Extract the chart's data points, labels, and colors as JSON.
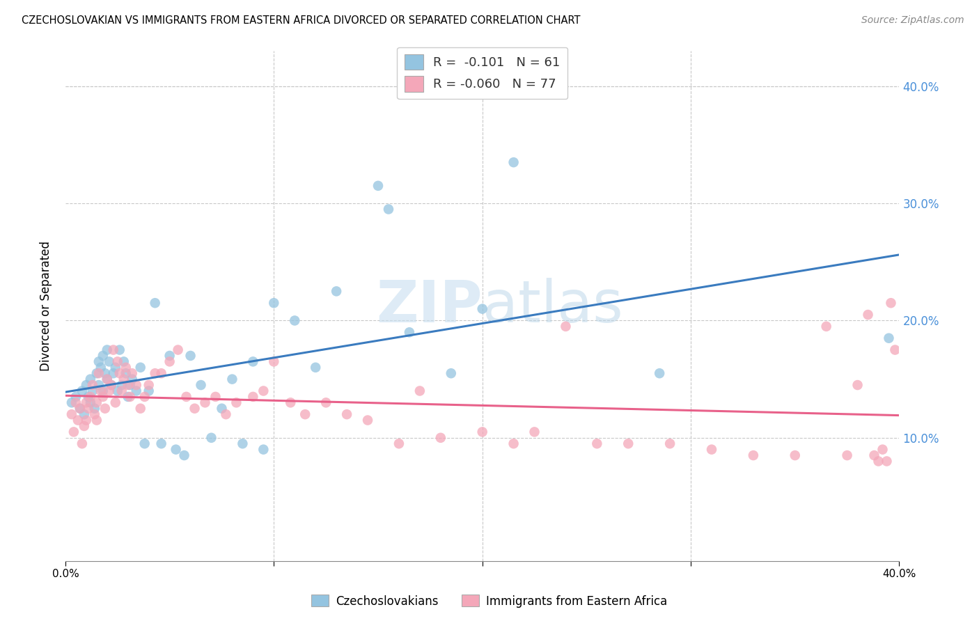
{
  "title": "CZECHOSLOVAKIAN VS IMMIGRANTS FROM EASTERN AFRICA DIVORCED OR SEPARATED CORRELATION CHART",
  "source": "Source: ZipAtlas.com",
  "ylabel": "Divorced or Separated",
  "xlim": [
    0.0,
    0.4
  ],
  "ylim": [
    -0.005,
    0.43
  ],
  "yticks": [
    0.1,
    0.2,
    0.3,
    0.4
  ],
  "ytick_labels": [
    "10.0%",
    "20.0%",
    "30.0%",
    "40.0%"
  ],
  "xticks": [
    0.0,
    0.1,
    0.2,
    0.3,
    0.4
  ],
  "legend_R1": "-0.101",
  "legend_N1": "61",
  "legend_R2": "-0.060",
  "legend_N2": "77",
  "color_blue": "#94c4e0",
  "color_pink": "#f4a7b9",
  "line_color_blue": "#3a7bbf",
  "line_color_pink": "#e8618a",
  "watermark_color": "#c8dff0",
  "label1": "Czechoslovakians",
  "label2": "Immigrants from Eastern Africa",
  "blue_x": [
    0.003,
    0.005,
    0.007,
    0.008,
    0.009,
    0.01,
    0.011,
    0.012,
    0.012,
    0.013,
    0.014,
    0.015,
    0.016,
    0.016,
    0.017,
    0.018,
    0.018,
    0.019,
    0.02,
    0.02,
    0.021,
    0.022,
    0.023,
    0.024,
    0.025,
    0.026,
    0.027,
    0.028,
    0.029,
    0.03,
    0.031,
    0.032,
    0.034,
    0.036,
    0.038,
    0.04,
    0.043,
    0.046,
    0.05,
    0.053,
    0.057,
    0.06,
    0.065,
    0.07,
    0.075,
    0.08,
    0.085,
    0.09,
    0.095,
    0.1,
    0.11,
    0.12,
    0.13,
    0.15,
    0.155,
    0.165,
    0.185,
    0.2,
    0.215,
    0.285,
    0.395
  ],
  "blue_y": [
    0.13,
    0.135,
    0.125,
    0.14,
    0.12,
    0.145,
    0.135,
    0.15,
    0.13,
    0.14,
    0.125,
    0.155,
    0.165,
    0.145,
    0.16,
    0.17,
    0.14,
    0.155,
    0.175,
    0.15,
    0.165,
    0.145,
    0.155,
    0.16,
    0.14,
    0.175,
    0.145,
    0.165,
    0.155,
    0.135,
    0.145,
    0.15,
    0.14,
    0.16,
    0.095,
    0.14,
    0.215,
    0.095,
    0.17,
    0.09,
    0.085,
    0.17,
    0.145,
    0.1,
    0.125,
    0.15,
    0.095,
    0.165,
    0.09,
    0.215,
    0.2,
    0.16,
    0.225,
    0.315,
    0.295,
    0.19,
    0.155,
    0.21,
    0.335,
    0.155,
    0.185
  ],
  "pink_x": [
    0.003,
    0.004,
    0.005,
    0.006,
    0.007,
    0.008,
    0.009,
    0.01,
    0.01,
    0.011,
    0.012,
    0.013,
    0.014,
    0.015,
    0.015,
    0.016,
    0.017,
    0.018,
    0.019,
    0.02,
    0.021,
    0.022,
    0.023,
    0.024,
    0.025,
    0.026,
    0.027,
    0.028,
    0.029,
    0.03,
    0.031,
    0.032,
    0.034,
    0.036,
    0.038,
    0.04,
    0.043,
    0.046,
    0.05,
    0.054,
    0.058,
    0.062,
    0.067,
    0.072,
    0.077,
    0.082,
    0.09,
    0.095,
    0.1,
    0.108,
    0.115,
    0.125,
    0.135,
    0.145,
    0.16,
    0.17,
    0.18,
    0.2,
    0.215,
    0.225,
    0.24,
    0.255,
    0.27,
    0.29,
    0.31,
    0.33,
    0.35,
    0.365,
    0.375,
    0.38,
    0.385,
    0.388,
    0.39,
    0.392,
    0.394,
    0.396,
    0.398
  ],
  "pink_y": [
    0.12,
    0.105,
    0.13,
    0.115,
    0.125,
    0.095,
    0.11,
    0.13,
    0.115,
    0.125,
    0.135,
    0.145,
    0.12,
    0.13,
    0.115,
    0.155,
    0.14,
    0.135,
    0.125,
    0.15,
    0.14,
    0.145,
    0.175,
    0.13,
    0.165,
    0.155,
    0.14,
    0.15,
    0.16,
    0.145,
    0.135,
    0.155,
    0.145,
    0.125,
    0.135,
    0.145,
    0.155,
    0.155,
    0.165,
    0.175,
    0.135,
    0.125,
    0.13,
    0.135,
    0.12,
    0.13,
    0.135,
    0.14,
    0.165,
    0.13,
    0.12,
    0.13,
    0.12,
    0.115,
    0.095,
    0.14,
    0.1,
    0.105,
    0.095,
    0.105,
    0.195,
    0.095,
    0.095,
    0.095,
    0.09,
    0.085,
    0.085,
    0.195,
    0.085,
    0.145,
    0.205,
    0.085,
    0.08,
    0.09,
    0.08,
    0.215,
    0.175
  ]
}
